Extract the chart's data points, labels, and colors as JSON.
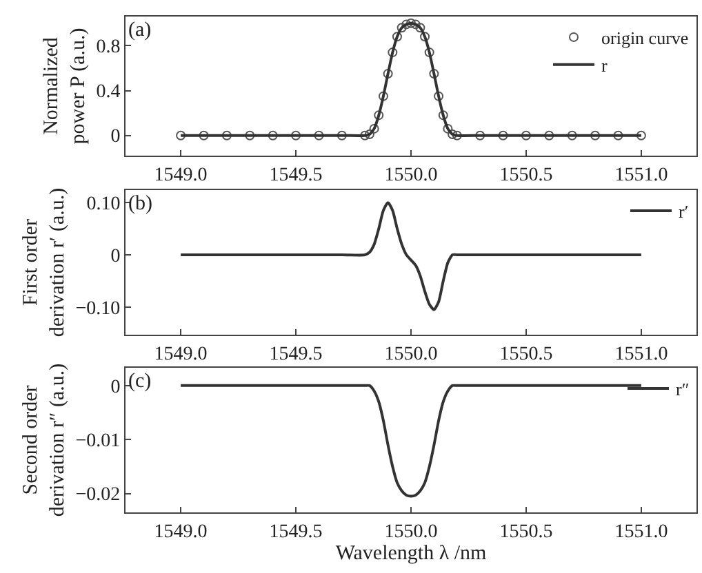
{
  "chart_data": [
    {
      "type": "line",
      "annotations": [
        "(a)"
      ],
      "ylabel": "Normalized\npower P (a.u.)",
      "x": [
        1549.0,
        1549.1,
        1549.2,
        1549.3,
        1549.4,
        1549.5,
        1549.6,
        1549.7,
        1549.8,
        1549.82,
        1549.84,
        1549.86,
        1549.88,
        1549.9,
        1549.92,
        1549.94,
        1549.96,
        1549.98,
        1550.0,
        1550.02,
        1550.04,
        1550.06,
        1550.08,
        1550.1,
        1550.12,
        1550.14,
        1550.16,
        1550.18,
        1550.2,
        1550.3,
        1550.4,
        1550.5,
        1550.6,
        1550.7,
        1550.8,
        1550.9,
        1551.0
      ],
      "series": [
        {
          "name": "origin curve",
          "type": "scatter",
          "marker": "circle",
          "color": "#555555",
          "values": [
            0,
            0,
            0,
            0,
            0,
            0,
            0,
            0,
            0,
            0.01,
            0.06,
            0.18,
            0.35,
            0.55,
            0.74,
            0.88,
            0.96,
            0.99,
            1.0,
            0.99,
            0.96,
            0.88,
            0.74,
            0.55,
            0.35,
            0.18,
            0.06,
            0.01,
            0,
            0,
            0,
            0,
            0,
            0,
            0,
            0,
            0
          ]
        },
        {
          "name": "r",
          "color": "#333333",
          "values": [
            0,
            0,
            0,
            0,
            0,
            0,
            0,
            0,
            0,
            0.01,
            0.06,
            0.18,
            0.35,
            0.55,
            0.74,
            0.88,
            0.96,
            0.99,
            1.0,
            0.99,
            0.96,
            0.88,
            0.74,
            0.55,
            0.35,
            0.18,
            0.06,
            0.01,
            0,
            0,
            0,
            0,
            0,
            0,
            0,
            0,
            0
          ]
        }
      ],
      "xlim": [
        1548.76,
        1551.24
      ],
      "xticks": [
        {
          "value": 1549.0,
          "label": "1549.0"
        },
        {
          "value": 1549.5,
          "label": "1549.5"
        },
        {
          "value": 1550.0,
          "label": "1550.0"
        },
        {
          "value": 1550.5,
          "label": "1550.5"
        },
        {
          "value": 1551.0,
          "label": "1551.0"
        }
      ],
      "ylim": [
        -0.18,
        1.06
      ],
      "yticks": [
        0,
        0.4,
        0.8
      ],
      "legend": "top right",
      "line_style": "solid"
    },
    {
      "type": "line",
      "annotations": [
        "(b)"
      ],
      "ylabel": "First order\nderivation r′ (a.u.)",
      "x": [
        1549.0,
        1549.1,
        1549.2,
        1549.3,
        1549.4,
        1549.5,
        1549.6,
        1549.7,
        1549.8,
        1549.82,
        1549.84,
        1549.86,
        1549.88,
        1549.9,
        1549.92,
        1549.94,
        1549.96,
        1549.98,
        1550.0,
        1550.02,
        1550.04,
        1550.06,
        1550.08,
        1550.1,
        1550.12,
        1550.14,
        1550.16,
        1550.18,
        1550.2,
        1550.3,
        1550.4,
        1550.5,
        1550.6,
        1550.7,
        1550.8,
        1550.9,
        1551.0
      ],
      "series": [
        {
          "name": "r′",
          "color": "#333333",
          "values": [
            0,
            0,
            0,
            0,
            0,
            0,
            0,
            0,
            0,
            0.005,
            0.02,
            0.05,
            0.085,
            0.1,
            0.085,
            0.05,
            0.02,
            0.0,
            -0.01,
            -0.02,
            -0.04,
            -0.07,
            -0.095,
            -0.105,
            -0.09,
            -0.05,
            -0.015,
            0,
            0,
            0,
            0,
            0,
            0,
            0,
            0,
            0,
            0
          ]
        }
      ],
      "xlim": [
        1548.76,
        1551.24
      ],
      "xticks": [
        {
          "value": 1549.0,
          "label": "1549.0"
        },
        {
          "value": 1549.5,
          "label": "1549.5"
        },
        {
          "value": 1550.0,
          "label": "1550.0"
        },
        {
          "value": 1550.5,
          "label": "1550.5"
        },
        {
          "value": 1551.0,
          "label": "1551.0"
        }
      ],
      "ylim": [
        -0.153,
        0.124
      ],
      "yticks": [
        {
          "value": 0.1,
          "label": "0.10"
        },
        0,
        {
          "value": -0.1,
          "label": "−0.10"
        }
      ],
      "legend": "top right",
      "line_style": "solid"
    },
    {
      "type": "line",
      "annotations": [
        "(c)"
      ],
      "ylabel": "Second order\nderivation r″ (a.u.)",
      "xlabel": "Wavelength λ /nm",
      "x": [
        1549.0,
        1549.1,
        1549.2,
        1549.3,
        1549.4,
        1549.5,
        1549.6,
        1549.7,
        1549.8,
        1549.82,
        1549.84,
        1549.86,
        1549.88,
        1549.9,
        1549.92,
        1549.94,
        1549.96,
        1549.98,
        1550.0,
        1550.02,
        1550.04,
        1550.06,
        1550.08,
        1550.1,
        1550.12,
        1550.14,
        1550.16,
        1550.18,
        1550.2,
        1550.3,
        1550.4,
        1550.5,
        1550.6,
        1550.7,
        1550.8,
        1550.9,
        1551.0
      ],
      "series": [
        {
          "name": "r″",
          "color": "#333333",
          "values": [
            0,
            0,
            0,
            0,
            0,
            0,
            0,
            0,
            0,
            0,
            -0.001,
            -0.003,
            -0.0065,
            -0.011,
            -0.015,
            -0.018,
            -0.0195,
            -0.0203,
            -0.0205,
            -0.0203,
            -0.0195,
            -0.018,
            -0.015,
            -0.011,
            -0.0065,
            -0.003,
            -0.001,
            0,
            0,
            0,
            0,
            0,
            0,
            0,
            0,
            0,
            0
          ]
        }
      ],
      "xlim": [
        1548.76,
        1551.24
      ],
      "xticks": [
        {
          "value": 1549.0,
          "label": "1549.0"
        },
        {
          "value": 1549.5,
          "label": "1549.5"
        },
        {
          "value": 1550.0,
          "label": "1550.0"
        },
        {
          "value": 1550.5,
          "label": "1550.5"
        },
        {
          "value": 1551.0,
          "label": "1551.0"
        }
      ],
      "ylim": [
        -0.0235,
        0.0033
      ],
      "yticks": [
        0,
        {
          "value": -0.01,
          "label": "−0.01"
        },
        {
          "value": -0.02,
          "label": "−0.02"
        }
      ],
      "legend": "top right",
      "line_style": "solid"
    }
  ]
}
